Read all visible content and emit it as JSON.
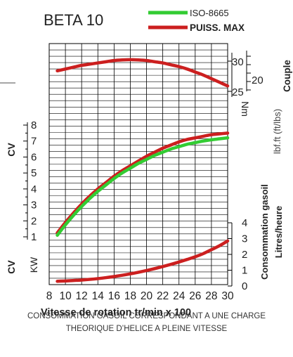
{
  "chart_data": {
    "type": "line",
    "title": "BETA 10",
    "xlabel": "Vitesse de rotation tr/min x 100",
    "xlim": [
      8,
      30
    ],
    "x_ticks": [
      "8",
      "10",
      "12",
      "14",
      "16",
      "18",
      "20",
      "22",
      "24",
      "26",
      "28",
      "30"
    ],
    "legend": [
      {
        "label": "ISO-8665",
        "color": "#33cc33"
      },
      {
        "label": "PUISS. MAX",
        "color": "#cc1f1f"
      }
    ],
    "power_axis": {
      "label_cv": "CV",
      "label_kw": "KW",
      "cv_ticks": [
        "8",
        "7",
        "6",
        "5",
        "4",
        "3",
        "2",
        "1"
      ],
      "ylim_cv": [
        0.3,
        8.8
      ]
    },
    "torque_axis": {
      "label_nm": "Nm",
      "label_lbf": "lbf.ft (ft/lbs)",
      "label_couple": "Couple",
      "nm_ticks": [
        "30",
        "25"
      ],
      "lbf_ticks": [
        "20"
      ],
      "ylim_nm": [
        24.6,
        31.2
      ]
    },
    "consumption_axis": {
      "label_line1": "Consommation gasoil",
      "label_line2": "Litres/heure",
      "ticks": [
        "4",
        "3",
        "2",
        "1",
        "0"
      ],
      "ylim": [
        0,
        4
      ]
    },
    "series": [
      {
        "name": "PUISS. MAX",
        "group": "torque",
        "color": "#cc1f1f",
        "x": [
          9,
          10,
          11,
          12,
          13,
          14,
          15,
          16,
          17,
          18,
          19,
          20,
          21,
          22,
          23,
          24,
          25,
          26,
          27,
          28,
          29,
          30
        ],
        "values": [
          28.4,
          28.7,
          29.0,
          29.3,
          29.5,
          29.7,
          29.9,
          30.1,
          30.2,
          30.25,
          30.2,
          30.1,
          29.9,
          29.7,
          29.4,
          29.1,
          28.7,
          28.2,
          27.7,
          27.1,
          26.5,
          25.9
        ]
      },
      {
        "name": "PUISS. MAX",
        "group": "power",
        "color": "#cc1f1f",
        "x": [
          9,
          10,
          11,
          12,
          13,
          14,
          15,
          16,
          17,
          18,
          19,
          20,
          21,
          22,
          23,
          24,
          25,
          26,
          27,
          28,
          29,
          30
        ],
        "values": [
          1.25,
          1.9,
          2.5,
          3.05,
          3.55,
          4.0,
          4.4,
          4.8,
          5.15,
          5.45,
          5.75,
          6.05,
          6.3,
          6.55,
          6.75,
          6.95,
          7.1,
          7.2,
          7.3,
          7.4,
          7.45,
          7.5
        ]
      },
      {
        "name": "ISO-8665",
        "group": "power",
        "color": "#33cc33",
        "x": [
          9,
          10,
          11,
          12,
          13,
          14,
          15,
          16,
          17,
          18,
          19,
          20,
          21,
          22,
          23,
          24,
          25,
          26,
          27,
          28,
          29,
          30
        ],
        "values": [
          1.1,
          1.75,
          2.35,
          2.9,
          3.4,
          3.85,
          4.25,
          4.65,
          5.0,
          5.3,
          5.6,
          5.85,
          6.1,
          6.3,
          6.5,
          6.65,
          6.8,
          6.9,
          7.0,
          7.08,
          7.14,
          7.2
        ]
      },
      {
        "name": "PUISS. MAX",
        "group": "consumption",
        "color": "#cc1f1f",
        "x": [
          9,
          10,
          11,
          12,
          13,
          14,
          15,
          16,
          17,
          18,
          19,
          20,
          21,
          22,
          23,
          24,
          25,
          26,
          27,
          28,
          29,
          30
        ],
        "values": [
          0.3,
          0.32,
          0.35,
          0.38,
          0.42,
          0.47,
          0.53,
          0.6,
          0.68,
          0.77,
          0.87,
          0.98,
          1.1,
          1.23,
          1.37,
          1.52,
          1.68,
          1.85,
          2.05,
          2.3,
          2.55,
          2.85
        ]
      }
    ]
  },
  "caption": {
    "line1": "CONSOMMATION GASOIL CORRESPONDANT A UNE CHARGE",
    "line2": "THEORIQUE D’HELICE A PLEINE VITESSE"
  }
}
